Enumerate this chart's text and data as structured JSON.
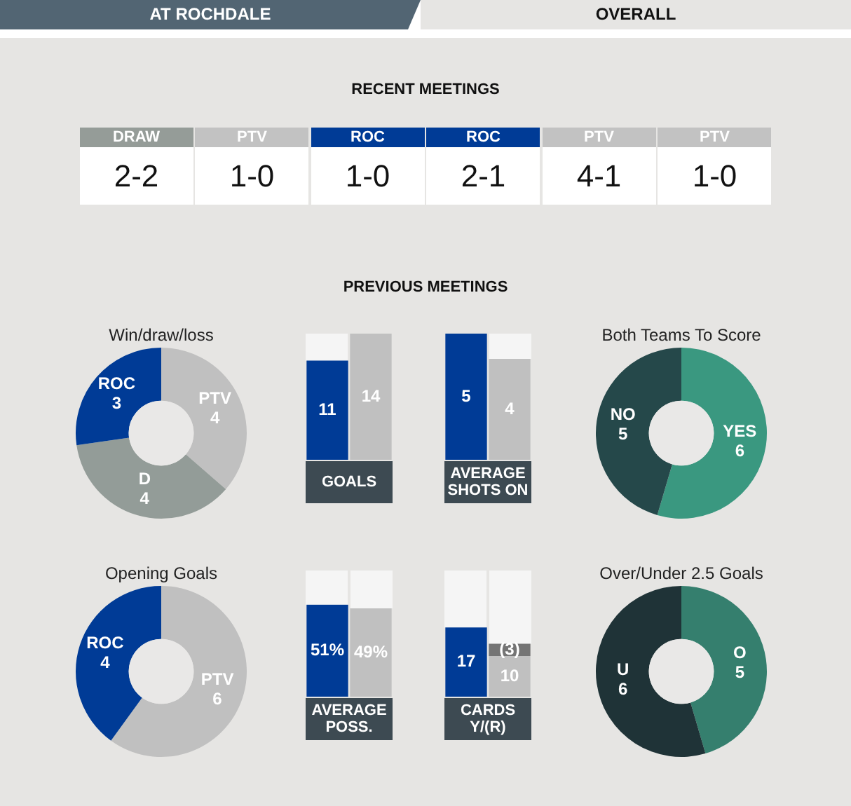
{
  "chart_data": [
    {
      "type": "other",
      "annotations": [
        "AT ROCHDALE",
        "OVERALL"
      ]
    },
    {
      "type": "other",
      "title": "RECENT MEETINGS",
      "categories": [
        "DRAW",
        "PTV",
        "ROC",
        "ROC",
        "PTV",
        "PTV"
      ],
      "colors": [
        "#959c98",
        "#c2c2c2",
        "#003b96",
        "#003b96",
        "#c2c2c2",
        "#c2c2c2"
      ],
      "annotations": [
        "2-2",
        "1-0",
        "1-0",
        "2-1",
        "4-1",
        "1-0"
      ]
    },
    {
      "type": "other",
      "title": "PREVIOUS MEETINGS"
    },
    {
      "type": "donut",
      "title": "Win/draw/loss",
      "categories": [
        "PTV",
        "D",
        "ROC"
      ],
      "values": [
        4,
        4,
        3
      ],
      "colors": [
        "#c0c0c0",
        "#939c98",
        "#003b96"
      ],
      "data_labels": true
    },
    {
      "type": "bar",
      "xlabel": "GOALS",
      "categories": [
        null,
        null
      ],
      "ylim": [
        0,
        14
      ],
      "values": [
        11,
        14
      ],
      "colors": [
        "#003b96",
        "#c0c0c0"
      ],
      "data_labels": true
    },
    {
      "type": "bar",
      "xlabel": "AVERAGE SHOTS ON",
      "categories": [
        null,
        null
      ],
      "ylim": [
        0,
        5
      ],
      "values": [
        5,
        4
      ],
      "colors": [
        "#003b96",
        "#c0c0c0"
      ],
      "data_labels": true
    },
    {
      "type": "donut",
      "title": "Both Teams To Score",
      "categories": [
        "YES",
        "NO"
      ],
      "values": [
        6,
        5
      ],
      "colors": [
        "#3a9880",
        "#25484a"
      ],
      "data_labels": true
    },
    {
      "type": "donut",
      "title": "Opening Goals",
      "categories": [
        "PTV",
        "ROC"
      ],
      "values": [
        6,
        4
      ],
      "colors": [
        "#c0c0c0",
        "#003b96"
      ],
      "data_labels": true
    },
    {
      "type": "bar",
      "xlabel": "AVERAGE POSS.",
      "categories": [
        null,
        null
      ],
      "ylim": [
        0,
        70
      ],
      "values": [
        51,
        49
      ],
      "colors": [
        "#003b96",
        "#c0c0c0"
      ],
      "value_labels": [
        "51%",
        "49%"
      ]
    },
    {
      "type": "bar",
      "xlabel": "CARDS Y/(R)",
      "categories": [
        null,
        null
      ],
      "ylim": [
        0,
        31
      ],
      "stacked": true,
      "series": [
        {
          "values": [
            17,
            10
          ],
          "colors": [
            "#003b96",
            "#c0c0c0"
          ],
          "value_labels": [
            "17",
            "10"
          ]
        },
        {
          "values": [
            null,
            3
          ],
          "color": "#747474",
          "value_labels": [
            null,
            "(3)"
          ]
        }
      ]
    },
    {
      "type": "donut",
      "title": "Over/Under 2.5 Goals",
      "categories": [
        "O",
        "U"
      ],
      "values": [
        5,
        6
      ],
      "colors": [
        "#357f6e",
        "#1f3337"
      ],
      "data_labels": true
    }
  ]
}
